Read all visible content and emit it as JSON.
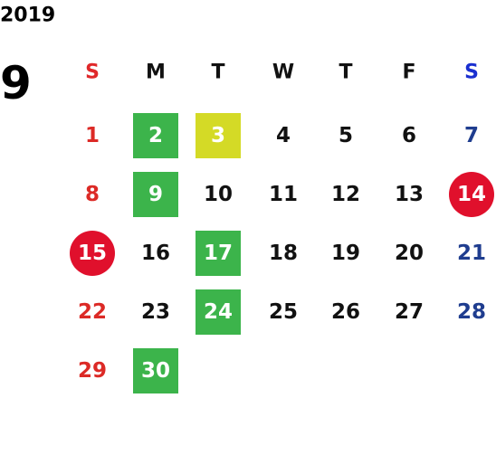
{
  "header": {
    "year": "2019",
    "month": "9"
  },
  "weekdays": [
    {
      "label": "S",
      "color": "#e0282a"
    },
    {
      "label": "M",
      "color": "#111111"
    },
    {
      "label": "T",
      "color": "#111111"
    },
    {
      "label": "W",
      "color": "#111111"
    },
    {
      "label": "T",
      "color": "#111111"
    },
    {
      "label": "F",
      "color": "#111111"
    },
    {
      "label": "S",
      "color": "#1a2fd0"
    }
  ],
  "day_colors": [
    "#dc2a26",
    "#111111",
    "#111111",
    "#111111",
    "#111111",
    "#111111",
    "#1f3d8f"
  ],
  "weeks": [
    [
      {
        "label": "1"
      },
      {
        "label": "2",
        "shape": "square",
        "fill": "#3cb44b"
      },
      {
        "label": "3",
        "shape": "square",
        "fill": "#d4da26"
      },
      {
        "label": "4"
      },
      {
        "label": "5"
      },
      {
        "label": "6"
      },
      {
        "label": "7"
      }
    ],
    [
      {
        "label": "8"
      },
      {
        "label": "9",
        "shape": "square",
        "fill": "#3cb44b"
      },
      {
        "label": "10"
      },
      {
        "label": "11"
      },
      {
        "label": "12"
      },
      {
        "label": "13"
      },
      {
        "label": "14",
        "shape": "circle",
        "fill": "#e0102c"
      }
    ],
    [
      {
        "label": "15",
        "shape": "circle",
        "fill": "#e0102c"
      },
      {
        "label": "16"
      },
      {
        "label": "17",
        "shape": "square",
        "fill": "#3cb44b"
      },
      {
        "label": "18"
      },
      {
        "label": "19"
      },
      {
        "label": "20"
      },
      {
        "label": "21"
      }
    ],
    [
      {
        "label": "22"
      },
      {
        "label": "23"
      },
      {
        "label": "24",
        "shape": "square",
        "fill": "#3cb44b"
      },
      {
        "label": "25"
      },
      {
        "label": "26"
      },
      {
        "label": "27"
      },
      {
        "label": "28"
      }
    ],
    [
      {
        "label": "29"
      },
      {
        "label": "30",
        "shape": "square",
        "fill": "#3cb44b"
      }
    ]
  ]
}
